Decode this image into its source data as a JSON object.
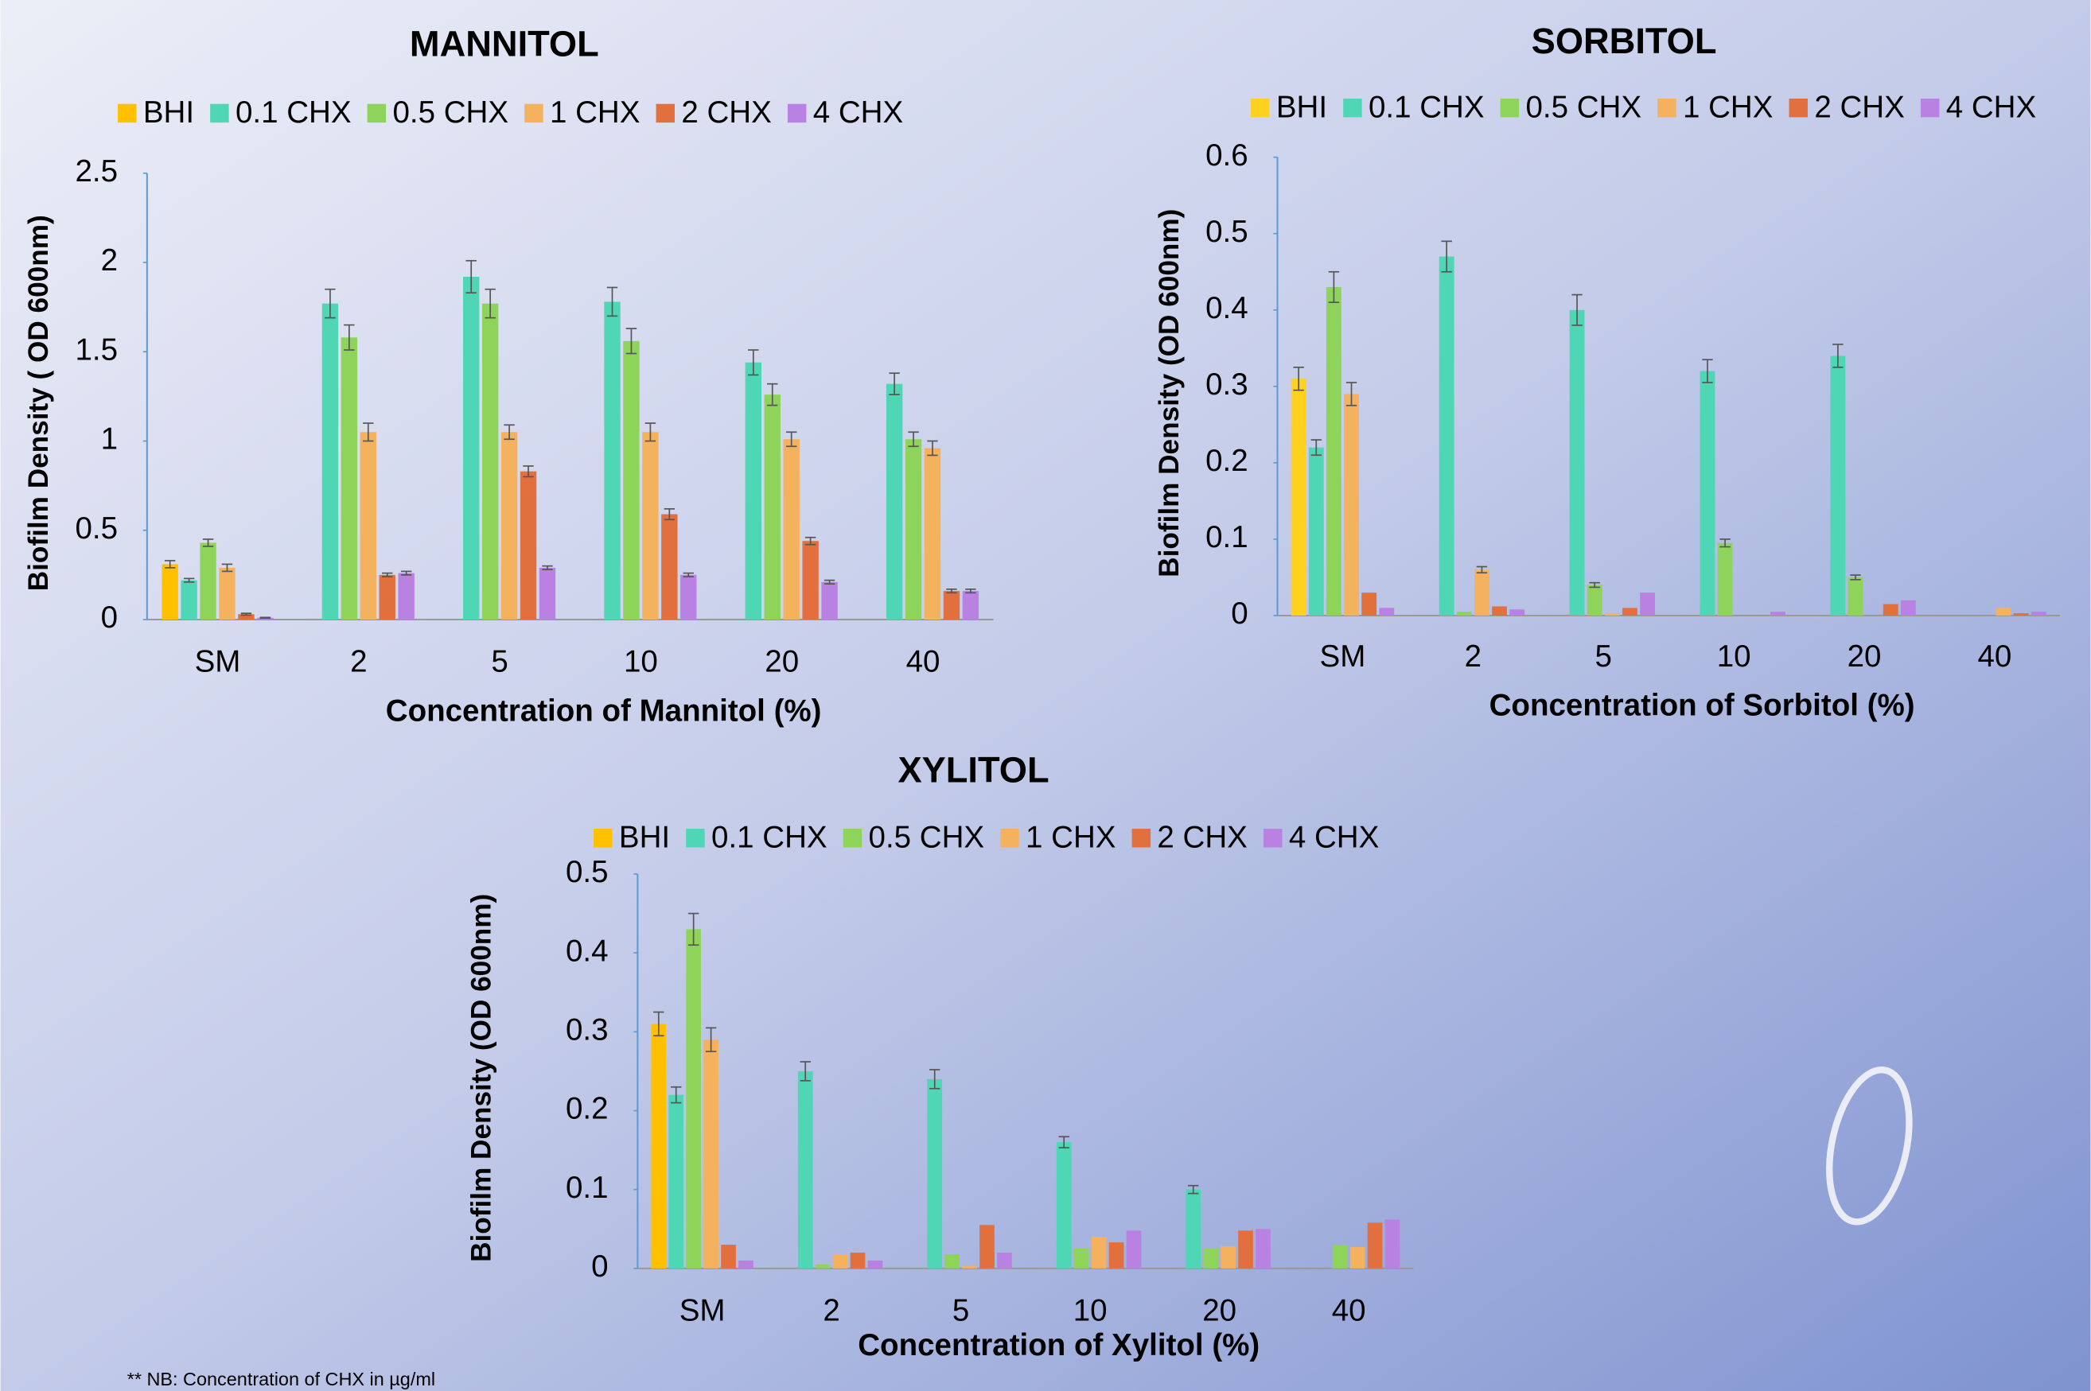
{
  "chart_data": [
    {
      "type": "bar",
      "title": "MANNITOL",
      "x_label": "Concentration of Mannitol (%)",
      "y_label": "Biofilm Density ( OD 600nm)",
      "categories": [
        "SM",
        "2",
        "5",
        "10",
        "20",
        "40"
      ],
      "ylim": [
        0,
        2.5
      ],
      "yticks": [
        0,
        0.5,
        1,
        1.5,
        2,
        2.5
      ],
      "series": [
        {
          "name": "BHI",
          "color": "#ffc000",
          "values": [
            0.31,
            null,
            null,
            null,
            null,
            null
          ],
          "errors": [
            0.02,
            null,
            null,
            null,
            null,
            null
          ]
        },
        {
          "name": "0.1 CHX",
          "color": "#4fd6b4",
          "values": [
            0.22,
            1.77,
            1.92,
            1.78,
            1.44,
            1.32
          ],
          "errors": [
            0.01,
            0.08,
            0.09,
            0.08,
            0.07,
            0.06
          ]
        },
        {
          "name": "0.5 CHX",
          "color": "#8fd45a",
          "values": [
            0.43,
            1.58,
            1.77,
            1.56,
            1.26,
            1.01
          ],
          "errors": [
            0.02,
            0.07,
            0.08,
            0.07,
            0.06,
            0.04
          ]
        },
        {
          "name": "1 CHX",
          "color": "#f4b25e",
          "values": [
            0.29,
            1.05,
            1.05,
            1.05,
            1.01,
            0.96
          ],
          "errors": [
            0.02,
            0.05,
            0.04,
            0.05,
            0.04,
            0.04
          ]
        },
        {
          "name": "2 CHX",
          "color": "#e2703e",
          "values": [
            0.03,
            0.25,
            0.83,
            0.59,
            0.44,
            0.16
          ],
          "errors": [
            0.005,
            0.01,
            0.03,
            0.03,
            0.02,
            0.01
          ]
        },
        {
          "name": "4 CHX",
          "color": "#b982e2",
          "values": [
            0.01,
            0.26,
            0.29,
            0.25,
            0.21,
            0.16
          ],
          "errors": [
            0.002,
            0.01,
            0.01,
            0.01,
            0.01,
            0.01
          ]
        }
      ]
    },
    {
      "type": "bar",
      "title": "SORBITOL",
      "x_label": "Concentration of Sorbitol (%)",
      "y_label": "Biofilm Density (OD 600nm)",
      "categories": [
        "SM",
        "2",
        "5",
        "10",
        "20",
        "40"
      ],
      "ylim": [
        0,
        0.6
      ],
      "yticks": [
        0,
        0.1,
        0.2,
        0.3,
        0.4,
        0.5,
        0.6
      ],
      "series": [
        {
          "name": "BHI",
          "color": "#ffd21f",
          "values": [
            0.31,
            null,
            null,
            null,
            null,
            null
          ],
          "errors": [
            0.015,
            null,
            null,
            null,
            null,
            null
          ]
        },
        {
          "name": "0.1 CHX",
          "color": "#4fd6b4",
          "values": [
            0.22,
            0.47,
            0.4,
            0.32,
            0.34,
            0
          ],
          "errors": [
            0.01,
            0.02,
            0.02,
            0.015,
            0.015,
            null
          ]
        },
        {
          "name": "0.5 CHX",
          "color": "#8fd45a",
          "values": [
            0.43,
            0.005,
            0.04,
            0.095,
            0.05,
            0
          ],
          "errors": [
            0.02,
            null,
            0.003,
            0.005,
            0.003,
            null
          ]
        },
        {
          "name": "1 CHX",
          "color": "#f4b25e",
          "values": [
            0.29,
            0.06,
            0.003,
            0,
            0,
            0.01
          ],
          "errors": [
            0.015,
            0.004,
            null,
            null,
            null,
            null
          ]
        },
        {
          "name": "2 CHX",
          "color": "#e2703e",
          "values": [
            0.03,
            0.012,
            0.01,
            0,
            0.015,
            0.003
          ],
          "errors": [
            null,
            null,
            null,
            null,
            null,
            null
          ]
        },
        {
          "name": "4 CHX",
          "color": "#b982e2",
          "values": [
            0.01,
            0.008,
            0.03,
            0.005,
            0.02,
            0.005
          ],
          "errors": [
            null,
            null,
            null,
            null,
            null,
            null
          ]
        }
      ]
    },
    {
      "type": "bar",
      "title": "XYLITOL",
      "x_label": "Concentration of Xylitol (%)",
      "y_label": "Biofilm Density (OD 600nm)",
      "categories": [
        "SM",
        "2",
        "5",
        "10",
        "20",
        "40"
      ],
      "ylim": [
        0,
        0.5
      ],
      "yticks": [
        0,
        0.1,
        0.2,
        0.3,
        0.4,
        0.5
      ],
      "series": [
        {
          "name": "BHI",
          "color": "#ffc000",
          "values": [
            0.31,
            null,
            null,
            null,
            null,
            null
          ],
          "errors": [
            0.015,
            null,
            null,
            null,
            null,
            null
          ]
        },
        {
          "name": "0.1 CHX",
          "color": "#4fd6b4",
          "values": [
            0.22,
            0.25,
            0.24,
            0.16,
            0.1,
            0
          ],
          "errors": [
            0.01,
            0.012,
            0.012,
            0.007,
            0.005,
            null
          ]
        },
        {
          "name": "0.5 CHX",
          "color": "#8fd45a",
          "values": [
            0.43,
            0.005,
            0.018,
            0.025,
            0.025,
            0.03
          ],
          "errors": [
            0.02,
            null,
            null,
            null,
            null,
            null
          ]
        },
        {
          "name": "1 CHX",
          "color": "#f4b25e",
          "values": [
            0.29,
            0.018,
            0.003,
            0.04,
            0.028,
            0.027
          ],
          "errors": [
            0.015,
            null,
            null,
            null,
            null,
            null
          ]
        },
        {
          "name": "2 CHX",
          "color": "#e2703e",
          "values": [
            0.03,
            0.02,
            0.055,
            0.033,
            0.048,
            0.058
          ],
          "errors": [
            null,
            null,
            null,
            null,
            null,
            null
          ]
        },
        {
          "name": "4 CHX",
          "color": "#b982e2",
          "values": [
            0.01,
            0.01,
            0.02,
            0.048,
            0.05,
            0.062
          ],
          "errors": [
            null,
            null,
            null,
            null,
            null,
            null
          ]
        }
      ]
    }
  ],
  "footnote": "**  NB: Concentration of CHX in µg/ml"
}
